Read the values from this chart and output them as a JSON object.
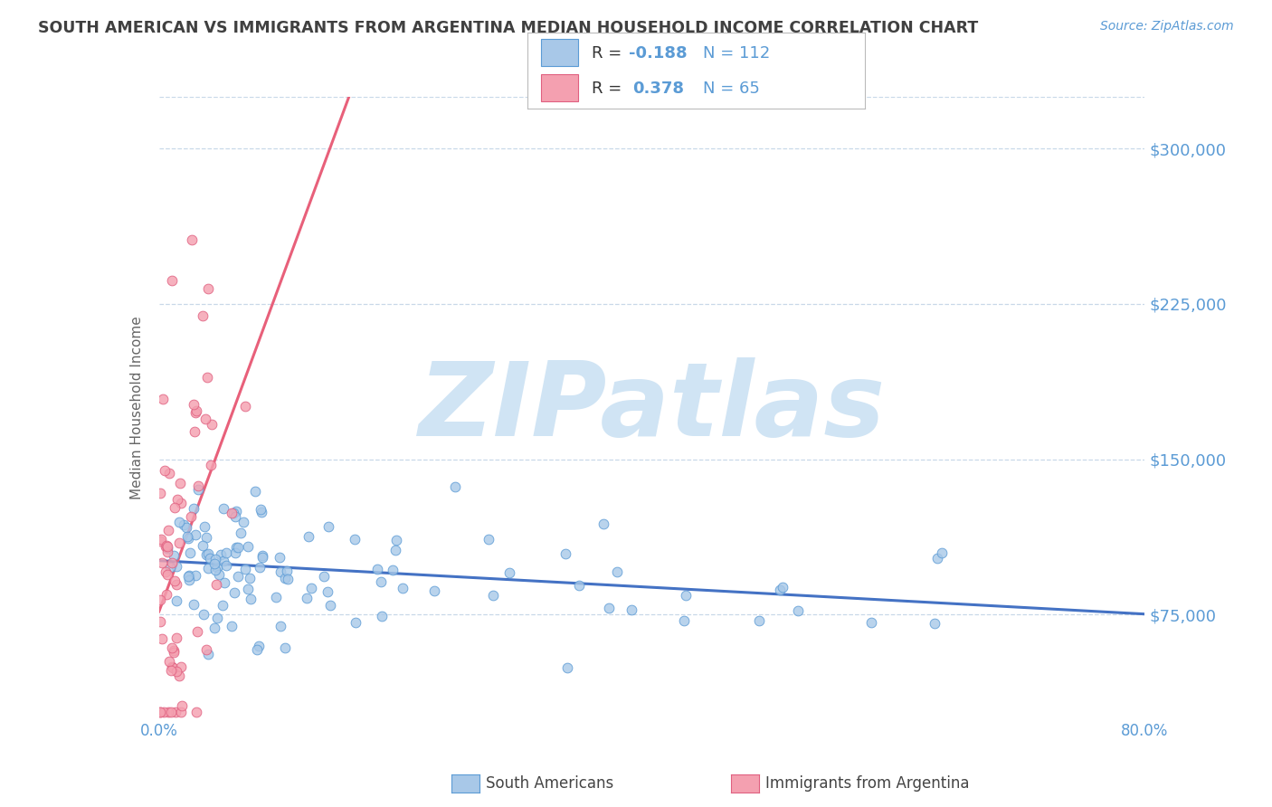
{
  "title": "SOUTH AMERICAN VS IMMIGRANTS FROM ARGENTINA MEDIAN HOUSEHOLD INCOME CORRELATION CHART",
  "source_text": "Source: ZipAtlas.com",
  "ylabel": "Median Household Income",
  "xlim": [
    0.0,
    0.8
  ],
  "ylim": [
    25000,
    325000
  ],
  "yticks": [
    75000,
    150000,
    225000,
    300000
  ],
  "ytick_labels": [
    "$75,000",
    "$150,000",
    "$225,000",
    "$300,000"
  ],
  "xticks": [
    0.0,
    0.1,
    0.2,
    0.3,
    0.4,
    0.5,
    0.6,
    0.7,
    0.8
  ],
  "blue_R": -0.188,
  "blue_N": 112,
  "pink_R": 0.378,
  "pink_N": 65,
  "blue_line_color": "#4472C4",
  "pink_line_color": "#E8607A",
  "blue_scatter_face": "#A8C8E8",
  "blue_scatter_edge": "#5B9BD5",
  "pink_scatter_face": "#F4A0B0",
  "pink_scatter_edge": "#E06080",
  "title_color": "#404040",
  "source_color": "#5B9BD5",
  "tick_color": "#5B9BD5",
  "ylabel_color": "#666666",
  "watermark_color": "#D0E4F4",
  "background_color": "#FFFFFF",
  "grid_color": "#C8D8E8",
  "legend_blue_label": "South Americans",
  "legend_pink_label": "Immigrants from Argentina",
  "seed": 42
}
